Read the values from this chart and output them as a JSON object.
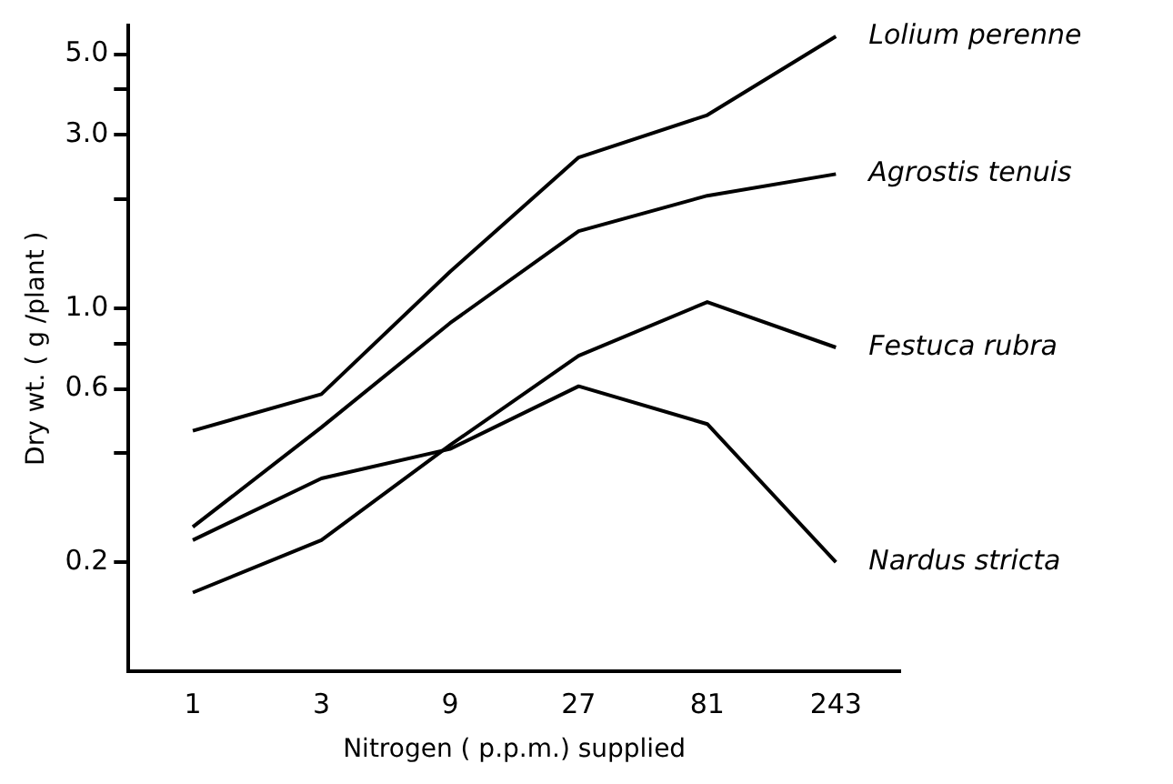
{
  "chart_data": {
    "type": "line",
    "xlabel": "Nitrogen ( p.p.m.) supplied",
    "ylabel": "Dry wt. ( g /plant )",
    "categories": [
      "1",
      "3",
      "9",
      "27",
      "81",
      "243"
    ],
    "series": [
      {
        "name": "Lolium perenne",
        "color": "#000000",
        "values": [
          0.46,
          0.58,
          1.26,
          2.6,
          3.4,
          5.6
        ]
      },
      {
        "name": "Agrostis tenuis",
        "color": "#000000",
        "values": [
          0.25,
          0.47,
          0.91,
          1.63,
          2.04,
          2.34
        ]
      },
      {
        "name": "Festuca rubra",
        "color": "#000000",
        "values": [
          0.165,
          0.23,
          0.42,
          0.74,
          1.04,
          0.78
        ]
      },
      {
        "name": "Nardus stricta",
        "color": "#000000",
        "values": [
          0.23,
          0.34,
          0.41,
          0.61,
          0.48,
          0.2
        ]
      }
    ],
    "log": "y",
    "ylim": [
      0.1,
      6
    ],
    "yticks": [
      {
        "value": 0.2,
        "label": "0.2"
      },
      {
        "value": 0.4,
        "label": null
      },
      {
        "value": 0.6,
        "label": "0.6"
      },
      {
        "value": 0.8,
        "label": null
      },
      {
        "value": 1,
        "label": "1.0"
      },
      {
        "value": 2,
        "label": null
      },
      {
        "value": 3,
        "label": "3.0"
      },
      {
        "value": 4,
        "label": null
      },
      {
        "value": 5,
        "label": "5.0"
      }
    ],
    "grid": false,
    "legend": false,
    "marker": "none",
    "line_style": "solid"
  }
}
